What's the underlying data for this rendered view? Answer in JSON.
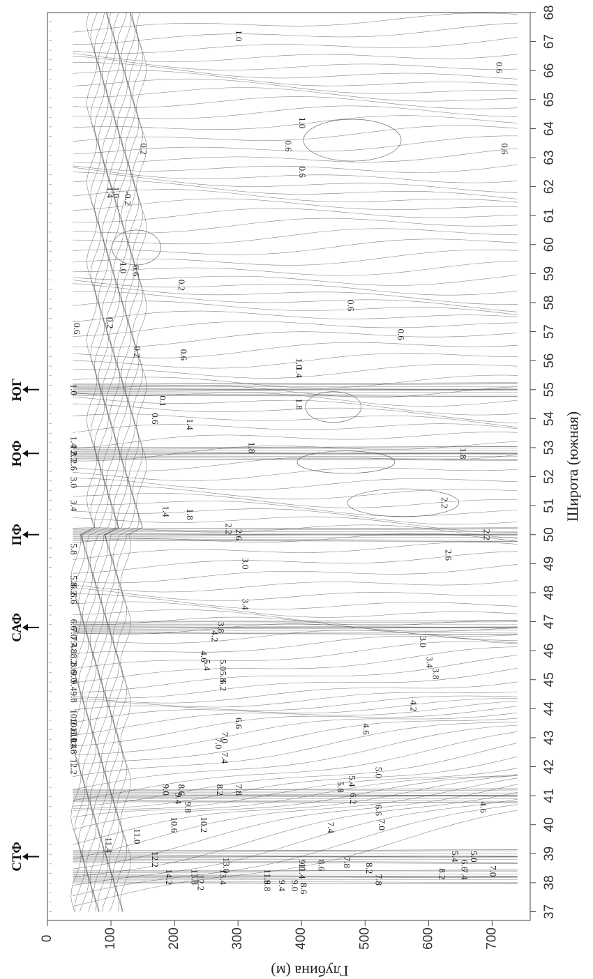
{
  "chart_data": {
    "type": "heatmap",
    "subtype": "contour-section",
    "title": "",
    "orientation": "rotated-90",
    "xlabel": "Широта (южная)",
    "ylabel": "Глубина (м)",
    "x_ticks": [
      "37",
      "38",
      "39",
      "40",
      "41",
      "42",
      "43",
      "44",
      "45",
      "46",
      "47",
      "48",
      "49",
      "50",
      "51",
      "52",
      "53",
      "54",
      "55",
      "56",
      "57",
      "58",
      "59",
      "60",
      "61",
      "62",
      "63",
      "64",
      "65",
      "66",
      "67",
      "68"
    ],
    "x_range": [
      36.7,
      68.0
    ],
    "y_ticks": [
      "0",
      "100",
      "200",
      "300",
      "400",
      "500",
      "600",
      "700"
    ],
    "y_range": [
      0,
      760
    ],
    "grid": false,
    "fronts": [
      {
        "name": "СТФ",
        "lat": 38.9
      },
      {
        "name": "САФ",
        "lat": 46.8
      },
      {
        "name": "ПФ",
        "lat": 50.0
      },
      {
        "name": "ЮФ",
        "lat": 52.8
      },
      {
        "name": "ЮГ",
        "lat": 55.0
      }
    ],
    "contour_labels": [
      {
        "text": "1.0",
        "lat": 67.2,
        "depth": 300
      },
      {
        "text": "0.6",
        "lat": 66.1,
        "depth": 710
      },
      {
        "text": "1.0",
        "lat": 64.2,
        "depth": 400
      },
      {
        "text": "0.6",
        "lat": 63.4,
        "depth": 378
      },
      {
        "text": "0.6",
        "lat": 63.3,
        "depth": 718
      },
      {
        "text": "0.2",
        "lat": 63.3,
        "depth": 150
      },
      {
        "text": "0.6",
        "lat": 62.5,
        "depth": 400
      },
      {
        "text": "1.4",
        "lat": 61.8,
        "depth": 97
      },
      {
        "text": "1.0",
        "lat": 61.8,
        "depth": 107
      },
      {
        "text": "-0.2",
        "lat": 61.6,
        "depth": 125
      },
      {
        "text": "0.6",
        "lat": 59.1,
        "depth": 138
      },
      {
        "text": "1.0",
        "lat": 59.2,
        "depth": 118
      },
      {
        "text": "0.2",
        "lat": 58.6,
        "depth": 210
      },
      {
        "text": "0.6",
        "lat": 57.9,
        "depth": 476
      },
      {
        "text": "0.2",
        "lat": 57.3,
        "depth": 97
      },
      {
        "text": "0.6",
        "lat": 57.1,
        "depth": 45
      },
      {
        "text": "0.6",
        "lat": 56.9,
        "depth": 555
      },
      {
        "text": "0.2",
        "lat": 56.3,
        "depth": 140
      },
      {
        "text": "0.6",
        "lat": 56.2,
        "depth": 213
      },
      {
        "text": "1.0",
        "lat": 55.9,
        "depth": 395
      },
      {
        "text": "1.4",
        "lat": 55.6,
        "depth": 395
      },
      {
        "text": "1.0",
        "lat": 55.0,
        "depth": 40
      },
      {
        "text": "0.1",
        "lat": 54.6,
        "depth": 180
      },
      {
        "text": "1.8",
        "lat": 54.5,
        "depth": 395
      },
      {
        "text": "0.6",
        "lat": 54.0,
        "depth": 168
      },
      {
        "text": "1.4",
        "lat": 53.8,
        "depth": 223
      },
      {
        "text": "1.4",
        "lat": 53.2,
        "depth": 40
      },
      {
        "text": "1.8",
        "lat": 53.0,
        "depth": 320
      },
      {
        "text": "1.8",
        "lat": 52.8,
        "depth": 653
      },
      {
        "text": "1.8",
        "lat": 52.9,
        "depth": 40
      },
      {
        "text": "2.2",
        "lat": 52.7,
        "depth": 40
      },
      {
        "text": "2.6",
        "lat": 52.4,
        "depth": 40
      },
      {
        "text": "3.0",
        "lat": 51.8,
        "depth": 40
      },
      {
        "text": "3.4",
        "lat": 51.0,
        "depth": 40
      },
      {
        "text": "2.2",
        "lat": 51.1,
        "depth": 624
      },
      {
        "text": "1.4",
        "lat": 50.8,
        "depth": 185
      },
      {
        "text": "1.8",
        "lat": 50.7,
        "depth": 223
      },
      {
        "text": "2.2",
        "lat": 50.2,
        "depth": 284
      },
      {
        "text": "2.6",
        "lat": 50.0,
        "depth": 300
      },
      {
        "text": "2.2",
        "lat": 50.0,
        "depth": 690
      },
      {
        "text": "2.6",
        "lat": 49.3,
        "depth": 630
      },
      {
        "text": "3.0",
        "lat": 49.0,
        "depth": 310
      },
      {
        "text": "5.8",
        "lat": 49.5,
        "depth": 40
      },
      {
        "text": "5.8",
        "lat": 48.4,
        "depth": 40
      },
      {
        "text": "6.2",
        "lat": 48.1,
        "depth": 40
      },
      {
        "text": "6.6",
        "lat": 47.8,
        "depth": 40
      },
      {
        "text": "3.4",
        "lat": 47.6,
        "depth": 310
      },
      {
        "text": "6.6",
        "lat": 46.9,
        "depth": 40
      },
      {
        "text": "7.0",
        "lat": 46.6,
        "depth": 40
      },
      {
        "text": "7.4",
        "lat": 46.3,
        "depth": 40
      },
      {
        "text": "7.8",
        "lat": 46.1,
        "depth": 40
      },
      {
        "text": "3.8",
        "lat": 46.8,
        "depth": 272
      },
      {
        "text": "4.2",
        "lat": 46.5,
        "depth": 262
      },
      {
        "text": "3.0",
        "lat": 46.3,
        "depth": 590
      },
      {
        "text": "8.2",
        "lat": 45.7,
        "depth": 40
      },
      {
        "text": "8.6",
        "lat": 45.4,
        "depth": 40
      },
      {
        "text": "9.0",
        "lat": 45.1,
        "depth": 40
      },
      {
        "text": "9.4",
        "lat": 44.8,
        "depth": 40
      },
      {
        "text": "9.8",
        "lat": 44.4,
        "depth": 40
      },
      {
        "text": "5.0",
        "lat": 45.5,
        "depth": 275
      },
      {
        "text": "5.4",
        "lat": 45.5,
        "depth": 250
      },
      {
        "text": "4.6",
        "lat": 45.8,
        "depth": 245
      },
      {
        "text": "5.8",
        "lat": 45.1,
        "depth": 275
      },
      {
        "text": "6.2",
        "lat": 44.8,
        "depth": 275
      },
      {
        "text": "3.4",
        "lat": 45.6,
        "depth": 600
      },
      {
        "text": "3.8",
        "lat": 45.2,
        "depth": 610
      },
      {
        "text": "4.2",
        "lat": 44.1,
        "depth": 575
      },
      {
        "text": "10.2",
        "lat": 43.7,
        "depth": 40
      },
      {
        "text": "10.6",
        "lat": 43.4,
        "depth": 40
      },
      {
        "text": "11.0",
        "lat": 43.1,
        "depth": 40
      },
      {
        "text": "11.4",
        "lat": 42.9,
        "depth": 40
      },
      {
        "text": "11.8",
        "lat": 42.7,
        "depth": 40
      },
      {
        "text": "6.6",
        "lat": 43.5,
        "depth": 300
      },
      {
        "text": "7.0",
        "lat": 43.0,
        "depth": 278
      },
      {
        "text": "7.0",
        "lat": 42.8,
        "depth": 268
      },
      {
        "text": "7.4",
        "lat": 42.3,
        "depth": 278
      },
      {
        "text": "4.6",
        "lat": 43.3,
        "depth": 500
      },
      {
        "text": "12.2",
        "lat": 42.0,
        "depth": 40
      },
      {
        "text": "5.0",
        "lat": 41.8,
        "depth": 520
      },
      {
        "text": "5.4",
        "lat": 41.5,
        "depth": 478
      },
      {
        "text": "5.8",
        "lat": 41.3,
        "depth": 460
      },
      {
        "text": "6.2",
        "lat": 40.9,
        "depth": 480
      },
      {
        "text": "6.6",
        "lat": 40.5,
        "depth": 520
      },
      {
        "text": "4.6",
        "lat": 40.6,
        "depth": 685
      },
      {
        "text": "7.8",
        "lat": 41.2,
        "depth": 300
      },
      {
        "text": "8.2",
        "lat": 41.2,
        "depth": 270
      },
      {
        "text": "8.6",
        "lat": 41.2,
        "depth": 210
      },
      {
        "text": "9.0",
        "lat": 41.2,
        "depth": 185
      },
      {
        "text": "9.4",
        "lat": 40.9,
        "depth": 205
      },
      {
        "text": "9.8",
        "lat": 40.6,
        "depth": 220
      },
      {
        "text": "10.2",
        "lat": 40.0,
        "depth": 245
      },
      {
        "text": "10.6",
        "lat": 40.0,
        "depth": 198
      },
      {
        "text": "11.0",
        "lat": 39.6,
        "depth": 140
      },
      {
        "text": "7.0",
        "lat": 40.0,
        "depth": 525
      },
      {
        "text": "7.4",
        "lat": 39.9,
        "depth": 445
      },
      {
        "text": "11.4",
        "lat": 39.3,
        "depth": 95
      },
      {
        "text": "12.2",
        "lat": 38.8,
        "depth": 168
      },
      {
        "text": "13.0",
        "lat": 38.6,
        "depth": 280
      },
      {
        "text": "13.4",
        "lat": 38.2,
        "depth": 275
      },
      {
        "text": "13.8",
        "lat": 38.2,
        "depth": 230
      },
      {
        "text": "14.2",
        "lat": 38.2,
        "depth": 190
      },
      {
        "text": "12.2",
        "lat": 38.0,
        "depth": 240
      },
      {
        "text": "11.8",
        "lat": 38.2,
        "depth": 345
      },
      {
        "text": "11.4",
        "lat": 38.4,
        "depth": 400
      },
      {
        "text": "9.8",
        "lat": 37.9,
        "depth": 345
      },
      {
        "text": "9.4",
        "lat": 37.9,
        "depth": 368
      },
      {
        "text": "9.0",
        "lat": 37.9,
        "depth": 388
      },
      {
        "text": "8.6",
        "lat": 37.8,
        "depth": 402
      },
      {
        "text": "9.0",
        "lat": 38.6,
        "depth": 400
      },
      {
        "text": "8.6",
        "lat": 38.6,
        "depth": 430
      },
      {
        "text": "7.8",
        "lat": 38.7,
        "depth": 470
      },
      {
        "text": "8.2",
        "lat": 38.5,
        "depth": 505
      },
      {
        "text": "7.8",
        "lat": 38.1,
        "depth": 520
      },
      {
        "text": "8.2",
        "lat": 38.3,
        "depth": 620
      },
      {
        "text": "7.4",
        "lat": 38.3,
        "depth": 655
      },
      {
        "text": "7.0",
        "lat": 38.4,
        "depth": 700
      },
      {
        "text": "6.6",
        "lat": 38.6,
        "depth": 655
      },
      {
        "text": "5.0",
        "lat": 38.9,
        "depth": 670
      },
      {
        "text": "5.4",
        "lat": 38.9,
        "depth": 640
      }
    ]
  }
}
